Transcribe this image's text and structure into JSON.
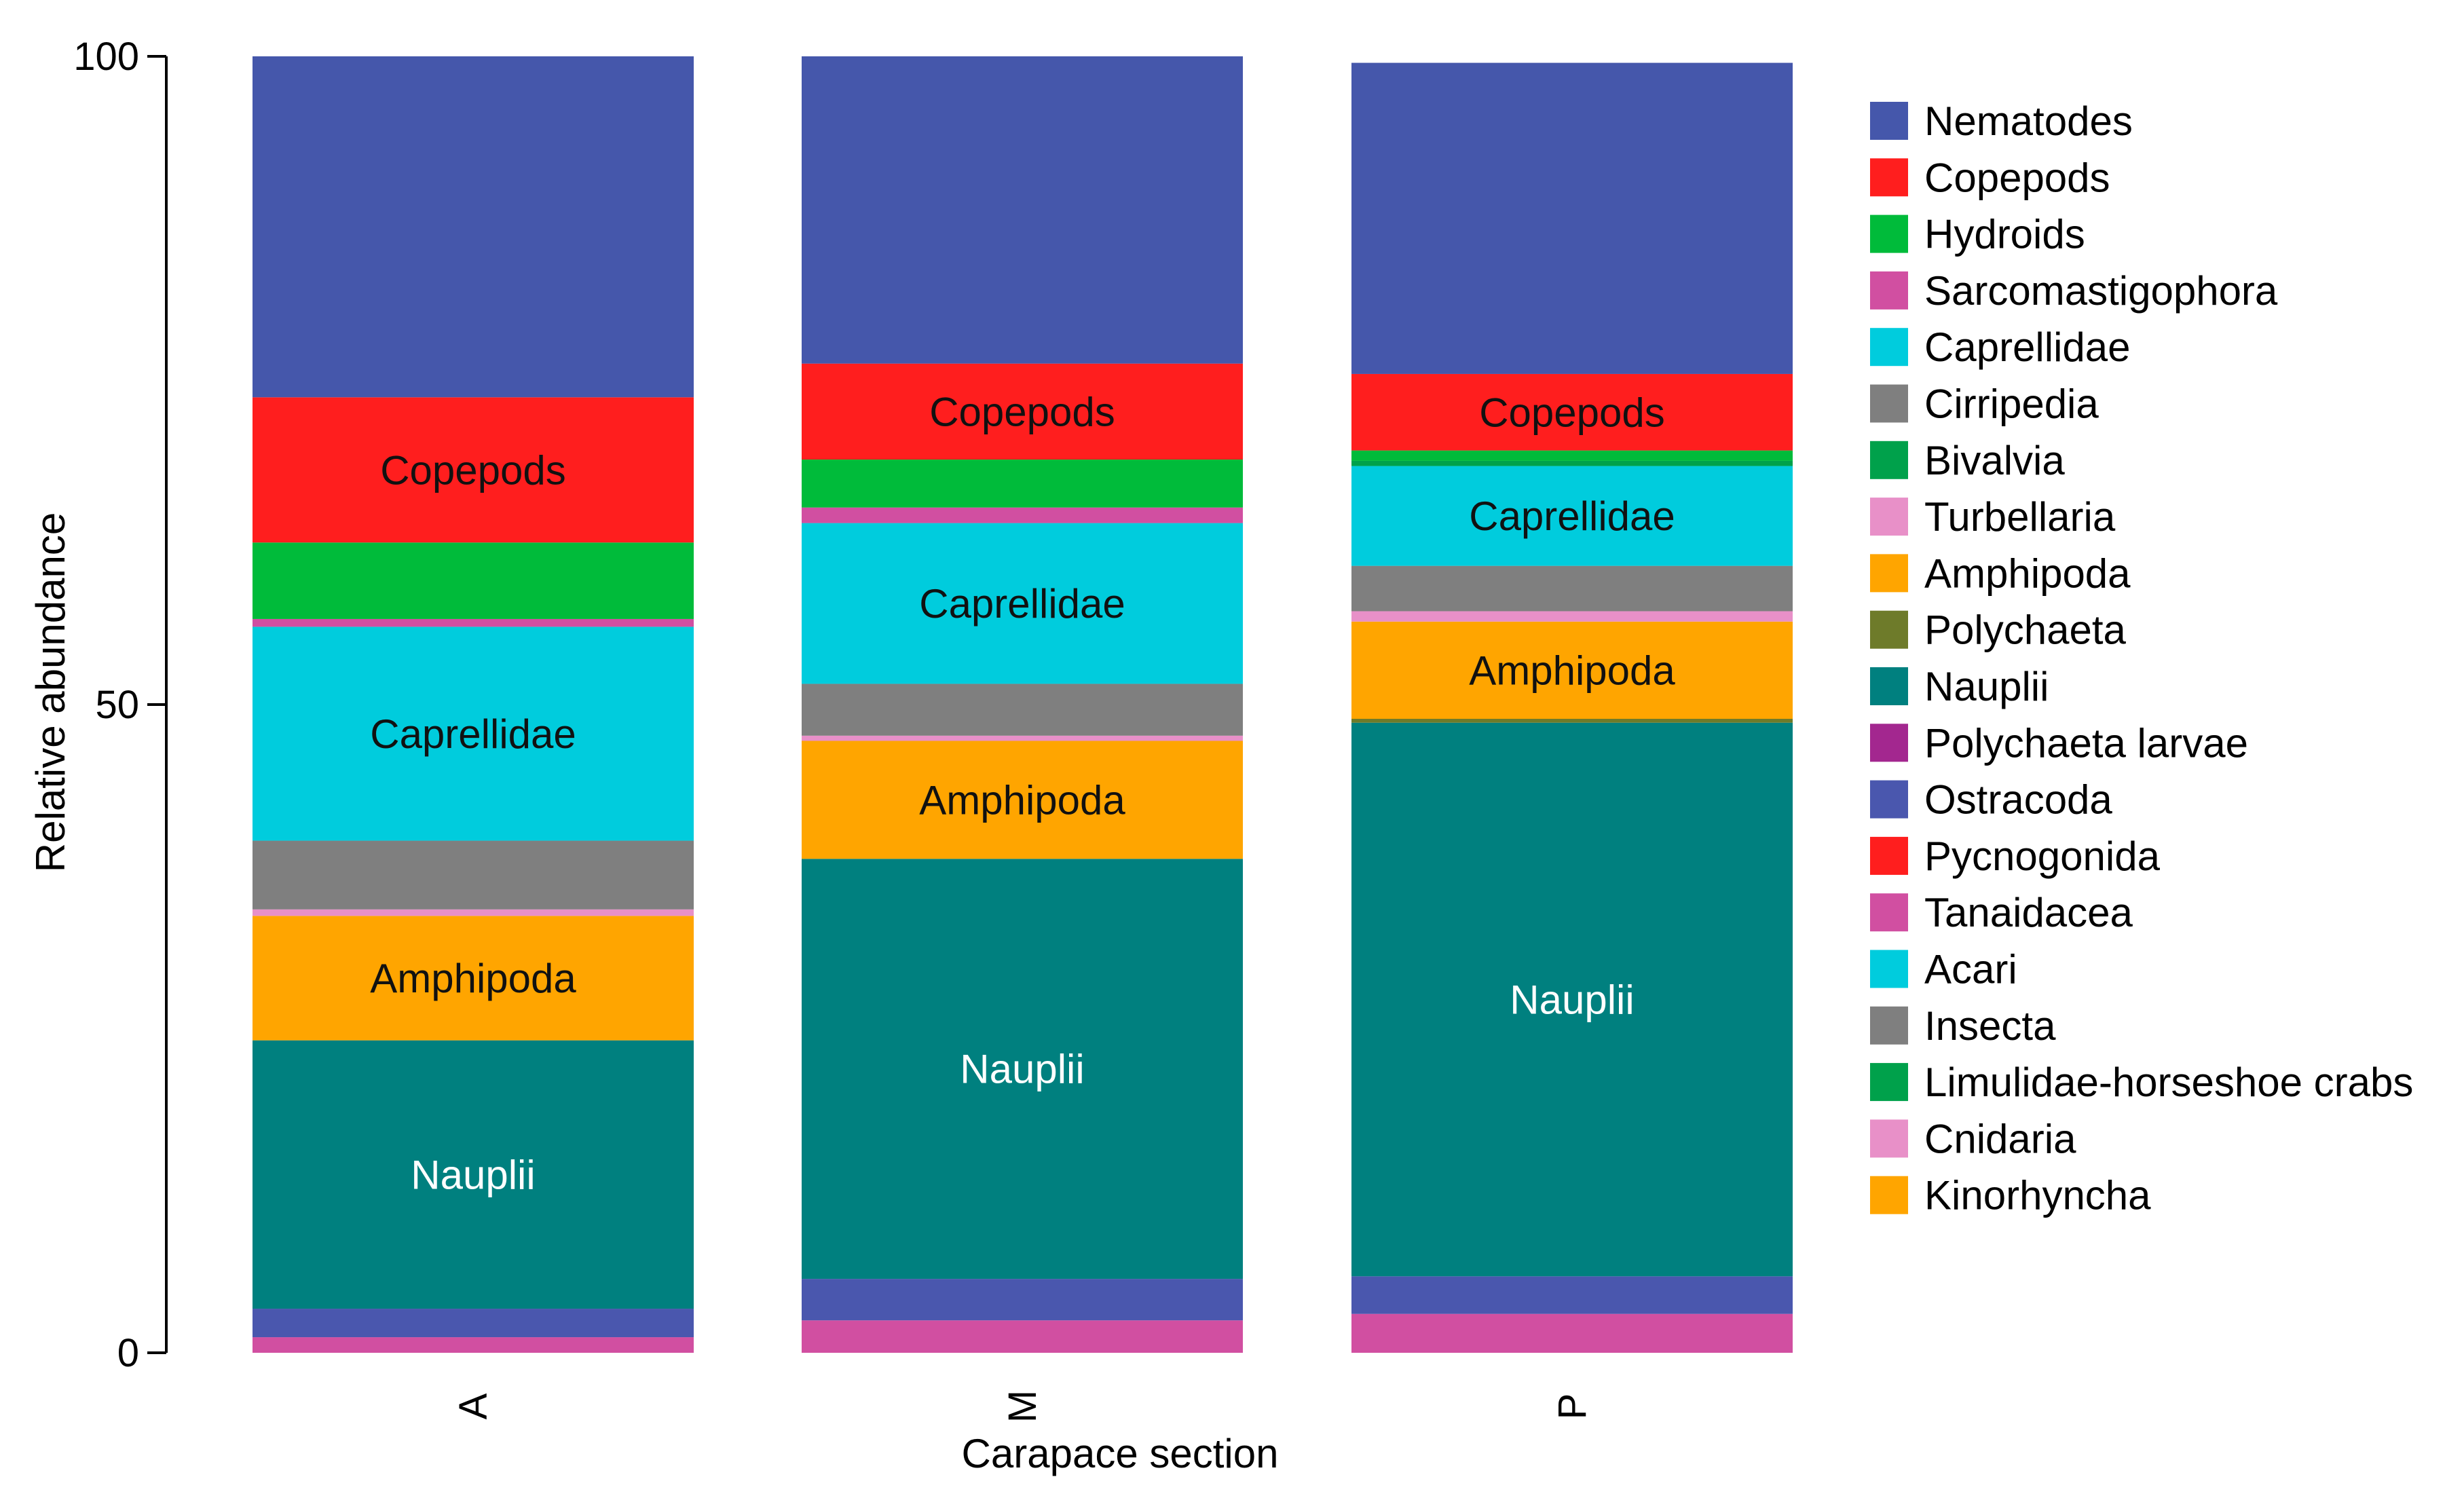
{
  "chart_data": {
    "type": "bar",
    "stacked": true,
    "title": "",
    "xlabel": "Carapace section",
    "ylabel": "Relative abundance",
    "ylim": [
      0,
      100
    ],
    "yticks": [
      0,
      50,
      100
    ],
    "categories": [
      "A",
      "M",
      "P"
    ],
    "legend_position": "right",
    "series": [
      {
        "name": "Tanaidacea",
        "color": "#D14FA1",
        "values": [
          1.2,
          2.5,
          3.0
        ]
      },
      {
        "name": "Ostracoda",
        "color": "#4A57AE",
        "values": [
          2.2,
          3.2,
          2.9
        ]
      },
      {
        "name": "Nauplii",
        "color": "#00807F",
        "values": [
          20.7,
          32.4,
          42.7
        ],
        "label": "Nauplii",
        "label_color": "#ffffff"
      },
      {
        "name": "Polychaeta",
        "color": "#6E7B2A",
        "values": [
          0,
          0,
          0.3
        ]
      },
      {
        "name": "Amphipoda",
        "color": "#FFA500",
        "values": [
          9.6,
          9.1,
          7.5
        ],
        "label": "Amphipoda",
        "label_color": "#111111"
      },
      {
        "name": "Turbellaria",
        "color": "#E890C8",
        "values": [
          0.5,
          0.4,
          0.8
        ]
      },
      {
        "name": "Cirripedia",
        "color": "#7F7F7F",
        "values": [
          5.3,
          4.0,
          3.5
        ]
      },
      {
        "name": "Caprellidae",
        "color": "#00CCDD",
        "values": [
          16.5,
          12.4,
          7.7
        ],
        "label": "Caprellidae",
        "label_color": "#111111"
      },
      {
        "name": "Bivalvia",
        "color": "#00A14B",
        "values": [
          0,
          0,
          0.4
        ]
      },
      {
        "name": "Sarcomastigophora",
        "color": "#D14FA1",
        "values": [
          0.6,
          1.2,
          0
        ]
      },
      {
        "name": "Hydroids",
        "color": "#00BB3A",
        "values": [
          5.9,
          3.7,
          0.8
        ]
      },
      {
        "name": "Copepods",
        "color": "#FF1E1E",
        "values": [
          11.2,
          7.4,
          5.9
        ],
        "label": "Copepods",
        "label_color": "#111111"
      },
      {
        "name": "Nematodes",
        "color": "#4557AB",
        "values": [
          26.3,
          23.7,
          24.0
        ]
      }
    ],
    "legend": [
      {
        "name": "Nematodes",
        "color": "#4557AB"
      },
      {
        "name": "Copepods",
        "color": "#FF1E1E"
      },
      {
        "name": "Hydroids",
        "color": "#00BB3A"
      },
      {
        "name": "Sarcomastigophora",
        "color": "#D14FA1"
      },
      {
        "name": "Caprellidae",
        "color": "#00CCDD"
      },
      {
        "name": "Cirripedia",
        "color": "#7F7F7F"
      },
      {
        "name": "Bivalvia",
        "color": "#00A14B"
      },
      {
        "name": "Turbellaria",
        "color": "#E890C8"
      },
      {
        "name": "Amphipoda",
        "color": "#FFA500"
      },
      {
        "name": "Polychaeta",
        "color": "#6E7B2A"
      },
      {
        "name": "Nauplii",
        "color": "#00807F"
      },
      {
        "name": "Polychaeta larvae",
        "color": "#A3278F"
      },
      {
        "name": "Ostracoda",
        "color": "#4A57AE"
      },
      {
        "name": "Pycnogonida",
        "color": "#FF1E1E"
      },
      {
        "name": "Tanaidacea",
        "color": "#D14FA1"
      },
      {
        "name": "Acari",
        "color": "#00CCDD"
      },
      {
        "name": "Insecta",
        "color": "#7F7F7F"
      },
      {
        "name": "Limulidae-horseshoe crabs",
        "color": "#00A14B"
      },
      {
        "name": "Cnidaria",
        "color": "#E890C8"
      },
      {
        "name": "Kinorhyncha",
        "color": "#FFA500"
      }
    ]
  }
}
